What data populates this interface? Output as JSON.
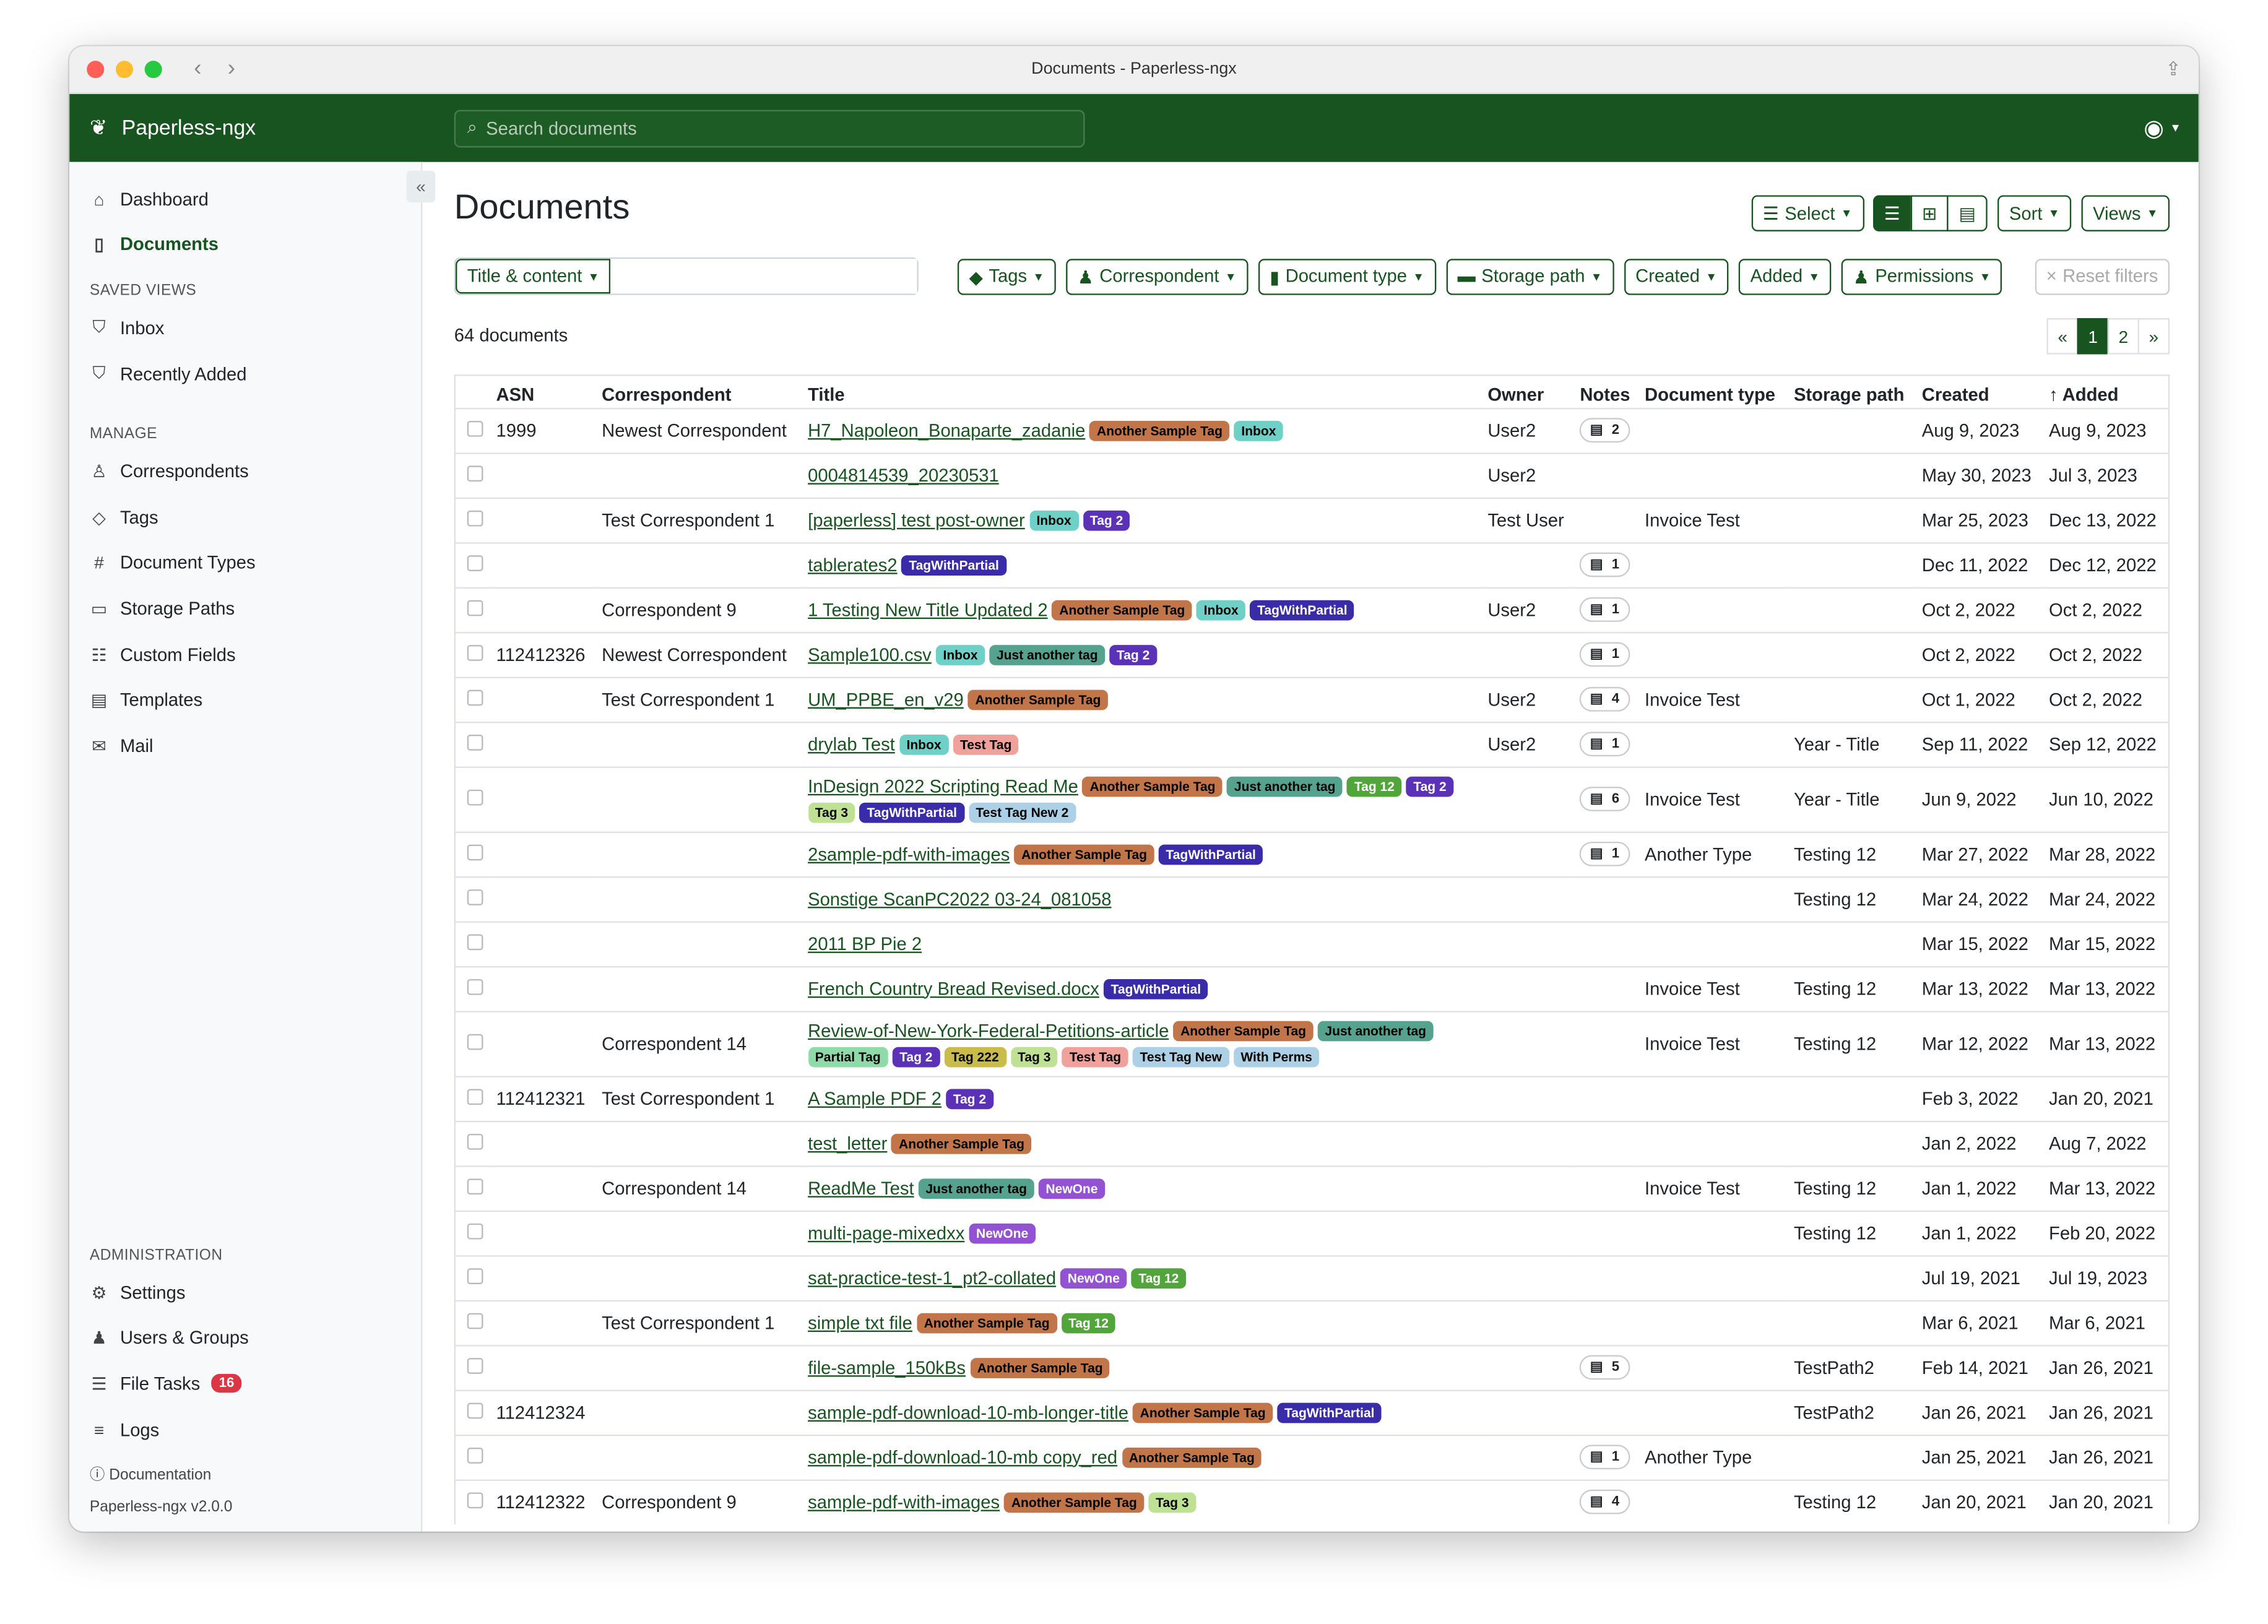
{
  "window": {
    "title": "Documents - Paperless-ngx"
  },
  "header": {
    "brand": "Paperless-ngx",
    "search_placeholder": "Search documents"
  },
  "sidebar": {
    "top": [
      {
        "label": "Dashboard",
        "icon": "house-icon"
      },
      {
        "label": "Documents",
        "icon": "file-icon",
        "active": true
      }
    ],
    "saved_views_heading": "SAVED VIEWS",
    "saved_views": [
      {
        "label": "Inbox",
        "icon": "funnel-icon"
      },
      {
        "label": "Recently Added",
        "icon": "funnel-icon"
      }
    ],
    "manage_heading": "MANAGE",
    "manage": [
      {
        "label": "Correspondents",
        "icon": "person-icon"
      },
      {
        "label": "Tags",
        "icon": "tags-icon"
      },
      {
        "label": "Document Types",
        "icon": "hash-icon"
      },
      {
        "label": "Storage Paths",
        "icon": "folder-icon"
      },
      {
        "label": "Custom Fields",
        "icon": "ui-radios-icon"
      },
      {
        "label": "Templates",
        "icon": "file-text-icon"
      },
      {
        "label": "Mail",
        "icon": "envelope-icon"
      }
    ],
    "admin_heading": "ADMINISTRATION",
    "admin": [
      {
        "label": "Settings",
        "icon": "gear-icon"
      },
      {
        "label": "Users & Groups",
        "icon": "people-icon"
      },
      {
        "label": "File Tasks",
        "icon": "list-task-icon",
        "badge": "16"
      },
      {
        "label": "Logs",
        "icon": "text-left-icon"
      }
    ],
    "documentation": "Documentation",
    "version": "Paperless-ngx v2.0.0"
  },
  "main": {
    "title": "Documents",
    "select_label": "Select",
    "sort_label": "Sort",
    "views_label": "Views",
    "title_content_label": "Title & content",
    "filters": [
      "Tags",
      "Correspondent",
      "Document type",
      "Storage path",
      "Created",
      "Added",
      "Permissions"
    ],
    "reset_label": "Reset filters",
    "count": "64 documents",
    "pager": [
      "«",
      "1",
      "2",
      "»"
    ],
    "columns": [
      "ASN",
      "Correspondent",
      "Title",
      "Owner",
      "Notes",
      "Document type",
      "Storage path",
      "Created",
      "Added"
    ]
  },
  "tag_colors": {
    "Another Sample Tag": [
      "#c27548",
      "#000"
    ],
    "Inbox": [
      "#6fd0c8",
      "#000"
    ],
    "Tag 2": [
      "#5b31b8",
      "#fff"
    ],
    "TagWithPartial": [
      "#3a2ba9",
      "#fff"
    ],
    "Just another tag": [
      "#55a38e",
      "#000"
    ],
    "Test Tag": [
      "#f0a19b",
      "#000"
    ],
    "Tag 12": [
      "#52a53b",
      "#fff"
    ],
    "Tag 3": [
      "#bfe193",
      "#000"
    ],
    "Test Tag New 2": [
      "#acd0e6",
      "#000"
    ],
    "Partial Tag": [
      "#8edaa8",
      "#000"
    ],
    "Tag 222": [
      "#c9bc4b",
      "#000"
    ],
    "Test Tag New": [
      "#acd0e6",
      "#000"
    ],
    "With Perms": [
      "#acd0e6",
      "#000"
    ],
    "NewOne": [
      "#9352d1",
      "#fff"
    ]
  },
  "rows": [
    {
      "asn": "1999",
      "correspondent": "Newest Correspondent",
      "title": "H7_Napoleon_Bonaparte_zadanie",
      "tags": [
        "Another Sample Tag",
        "Inbox"
      ],
      "owner": "User2",
      "notes": "2",
      "type": "",
      "path": "",
      "created": "Aug 9, 2023",
      "added": "Aug 9, 2023"
    },
    {
      "asn": "",
      "correspondent": "",
      "title": "0004814539_20230531",
      "tags": [],
      "owner": "User2",
      "notes": "",
      "type": "",
      "path": "",
      "created": "May 30, 2023",
      "added": "Jul 3, 2023"
    },
    {
      "asn": "",
      "correspondent": "Test Correspondent 1",
      "title": "[paperless] test post-owner",
      "tags": [
        "Inbox",
        "Tag 2"
      ],
      "owner": "Test User",
      "notes": "",
      "type": "Invoice Test",
      "path": "",
      "created": "Mar 25, 2023",
      "added": "Dec 13, 2022"
    },
    {
      "asn": "",
      "correspondent": "",
      "title": "tablerates2",
      "tags": [
        "TagWithPartial"
      ],
      "owner": "",
      "notes": "1",
      "type": "",
      "path": "",
      "created": "Dec 11, 2022",
      "added": "Dec 12, 2022"
    },
    {
      "asn": "",
      "correspondent": "Correspondent 9",
      "title": "1 Testing New Title Updated 2",
      "tags": [
        "Another Sample Tag",
        "Inbox",
        "TagWithPartial"
      ],
      "owner": "User2",
      "notes": "1",
      "type": "",
      "path": "",
      "created": "Oct 2, 2022",
      "added": "Oct 2, 2022"
    },
    {
      "asn": "112412326",
      "correspondent": "Newest Correspondent",
      "title": "Sample100.csv",
      "tags": [
        "Inbox",
        "Just another tag",
        "Tag 2"
      ],
      "owner": "",
      "notes": "1",
      "type": "",
      "path": "",
      "created": "Oct 2, 2022",
      "added": "Oct 2, 2022"
    },
    {
      "asn": "",
      "correspondent": "Test Correspondent 1",
      "title": "UM_PPBE_en_v29",
      "tags": [
        "Another Sample Tag"
      ],
      "owner": "User2",
      "notes": "4",
      "type": "Invoice Test",
      "path": "",
      "created": "Oct 1, 2022",
      "added": "Oct 2, 2022"
    },
    {
      "asn": "",
      "correspondent": "",
      "title": "drylab Test",
      "tags": [
        "Inbox",
        "Test Tag"
      ],
      "owner": "User2",
      "notes": "1",
      "type": "",
      "path": "Year - Title",
      "created": "Sep 11, 2022",
      "added": "Sep 12, 2022"
    },
    {
      "asn": "",
      "correspondent": "",
      "title": "InDesign 2022 Scripting Read Me",
      "tags": [
        "Another Sample Tag",
        "Just another tag",
        "Tag 12",
        "Tag 2",
        "Tag 3",
        "TagWithPartial",
        "Test Tag New 2"
      ],
      "owner": "",
      "notes": "6",
      "type": "Invoice Test",
      "path": "Year - Title",
      "created": "Jun 9, 2022",
      "added": "Jun 10, 2022"
    },
    {
      "asn": "",
      "correspondent": "",
      "title": "2sample-pdf-with-images",
      "tags": [
        "Another Sample Tag",
        "TagWithPartial"
      ],
      "owner": "",
      "notes": "1",
      "type": "Another Type",
      "path": "Testing 12",
      "created": "Mar 27, 2022",
      "added": "Mar 28, 2022"
    },
    {
      "asn": "",
      "correspondent": "",
      "title": "Sonstige ScanPC2022 03-24_081058",
      "tags": [],
      "owner": "",
      "notes": "",
      "type": "",
      "path": "Testing 12",
      "created": "Mar 24, 2022",
      "added": "Mar 24, 2022"
    },
    {
      "asn": "",
      "correspondent": "",
      "title": "2011 BP Pie 2",
      "tags": [],
      "owner": "",
      "notes": "",
      "type": "",
      "path": "",
      "created": "Mar 15, 2022",
      "added": "Mar 15, 2022"
    },
    {
      "asn": "",
      "correspondent": "",
      "title": "French Country Bread Revised.docx",
      "tags": [
        "TagWithPartial"
      ],
      "owner": "",
      "notes": "",
      "type": "Invoice Test",
      "path": "Testing 12",
      "created": "Mar 13, 2022",
      "added": "Mar 13, 2022"
    },
    {
      "asn": "",
      "correspondent": "Correspondent 14",
      "title": "Review-of-New-York-Federal-Petitions-article",
      "tags": [
        "Another Sample Tag",
        "Just another tag",
        "Partial Tag",
        "Tag 2",
        "Tag 222",
        "Tag 3",
        "Test Tag",
        "Test Tag New",
        "With Perms"
      ],
      "owner": "",
      "notes": "",
      "type": "Invoice Test",
      "path": "Testing 12",
      "created": "Mar 12, 2022",
      "added": "Mar 13, 2022"
    },
    {
      "asn": "112412321",
      "correspondent": "Test Correspondent 1",
      "title": "A Sample PDF 2",
      "tags": [
        "Tag 2"
      ],
      "owner": "",
      "notes": "",
      "type": "",
      "path": "",
      "created": "Feb 3, 2022",
      "added": "Jan 20, 2021"
    },
    {
      "asn": "",
      "correspondent": "",
      "title": "test_letter",
      "tags": [
        "Another Sample Tag"
      ],
      "owner": "",
      "notes": "",
      "type": "",
      "path": "",
      "created": "Jan 2, 2022",
      "added": "Aug 7, 2022"
    },
    {
      "asn": "",
      "correspondent": "Correspondent 14",
      "title": "ReadMe Test",
      "tags": [
        "Just another tag",
        "NewOne"
      ],
      "owner": "",
      "notes": "",
      "type": "Invoice Test",
      "path": "Testing 12",
      "created": "Jan 1, 2022",
      "added": "Mar 13, 2022"
    },
    {
      "asn": "",
      "correspondent": "",
      "title": "multi-page-mixedxx",
      "tags": [
        "NewOne"
      ],
      "owner": "",
      "notes": "",
      "type": "",
      "path": "Testing 12",
      "created": "Jan 1, 2022",
      "added": "Feb 20, 2022"
    },
    {
      "asn": "",
      "correspondent": "",
      "title": "sat-practice-test-1_pt2-collated",
      "tags": [
        "NewOne",
        "Tag 12"
      ],
      "owner": "",
      "notes": "",
      "type": "",
      "path": "",
      "created": "Jul 19, 2021",
      "added": "Jul 19, 2023"
    },
    {
      "asn": "",
      "correspondent": "Test Correspondent 1",
      "title": "simple txt file",
      "tags": [
        "Another Sample Tag",
        "Tag 12"
      ],
      "owner": "",
      "notes": "",
      "type": "",
      "path": "",
      "created": "Mar 6, 2021",
      "added": "Mar 6, 2021"
    },
    {
      "asn": "",
      "correspondent": "",
      "title": "file-sample_150kBs",
      "tags": [
        "Another Sample Tag"
      ],
      "owner": "",
      "notes": "5",
      "type": "",
      "path": "TestPath2",
      "created": "Feb 14, 2021",
      "added": "Jan 26, 2021"
    },
    {
      "asn": "112412324",
      "correspondent": "",
      "title": "sample-pdf-download-10-mb-longer-title",
      "tags": [
        "Another Sample Tag",
        "TagWithPartial"
      ],
      "owner": "",
      "notes": "",
      "type": "",
      "path": "TestPath2",
      "created": "Jan 26, 2021",
      "added": "Jan 26, 2021"
    },
    {
      "asn": "",
      "correspondent": "",
      "title": "sample-pdf-download-10-mb copy_red",
      "tags": [
        "Another Sample Tag"
      ],
      "owner": "",
      "notes": "1",
      "type": "Another Type",
      "path": "",
      "created": "Jan 25, 2021",
      "added": "Jan 26, 2021"
    },
    {
      "asn": "112412322",
      "correspondent": "Correspondent 9",
      "title": "sample-pdf-with-images",
      "tags": [
        "Another Sample Tag",
        "Tag 3"
      ],
      "owner": "",
      "notes": "4",
      "type": "",
      "path": "Testing 12",
      "created": "Jan 20, 2021",
      "added": "Jan 20, 2021"
    }
  ]
}
